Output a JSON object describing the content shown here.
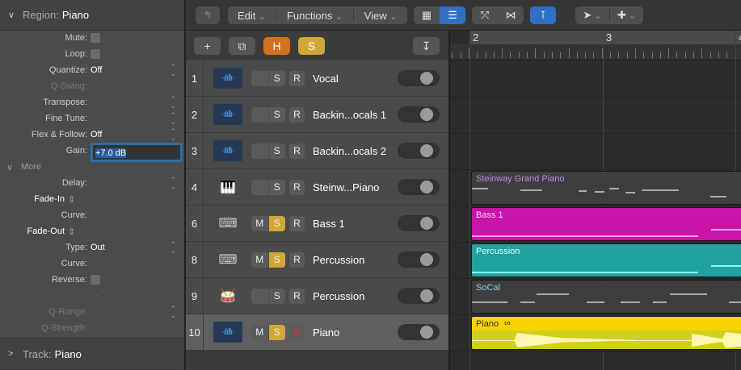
{
  "inspector": {
    "region_label": "Region:",
    "region_name": "Piano",
    "rows": [
      {
        "label": "Mute:",
        "type": "check"
      },
      {
        "label": "Loop:",
        "type": "check"
      },
      {
        "label": "Quantize:",
        "value": "Off",
        "spin": true
      },
      {
        "label": "Q-Swing:",
        "dim": true
      },
      {
        "label": "Transpose:",
        "spin": true
      },
      {
        "label": "Fine Tune:",
        "spin": true
      },
      {
        "label": "Flex & Follow:",
        "value": "Off",
        "spin": true
      },
      {
        "label": "Gain:",
        "type": "gain"
      },
      {
        "label": "More",
        "type": "section"
      },
      {
        "label": "Delay:",
        "spin": true
      },
      {
        "label": "Fade-In",
        "type": "bold"
      },
      {
        "label": "Curve:"
      },
      {
        "label": "Fade-Out",
        "type": "bold"
      },
      {
        "label": "Type:",
        "value": "Out",
        "spin": true
      },
      {
        "label": "Curve:"
      },
      {
        "label": "Reverse:",
        "type": "check"
      },
      {
        "label": "- -",
        "dim": true
      },
      {
        "label": "Q-Range:",
        "dim": true,
        "spin": true
      },
      {
        "label": "Q-Strength:",
        "dim": true
      }
    ],
    "gain_value": "+7.0 dB",
    "track_label": "Track:",
    "track_name": "Piano"
  },
  "toolbar": {
    "edit": "Edit",
    "functions": "Functions",
    "view": "View"
  },
  "track_header": {
    "hide_label": "H",
    "solo_label": "S"
  },
  "ruler": {
    "bars": [
      "2",
      "3",
      "4"
    ]
  },
  "tracks": [
    {
      "num": "1",
      "name": "Vocal",
      "icon": "audio",
      "m": false,
      "s": false,
      "r": false,
      "mute_label": "",
      "solo_label": "S",
      "rec_label": "R"
    },
    {
      "num": "2",
      "name": "Backin...ocals 1",
      "icon": "audio",
      "m": false,
      "s": false,
      "r": false,
      "mute_label": "",
      "solo_label": "S",
      "rec_label": "R"
    },
    {
      "num": "3",
      "name": "Backin...ocals 2",
      "icon": "audio",
      "m": false,
      "s": false,
      "r": false,
      "mute_label": "",
      "solo_label": "S",
      "rec_label": "R"
    },
    {
      "num": "4",
      "name": "Steinw...Piano",
      "icon": "grand-piano",
      "m": false,
      "s": false,
      "r": false,
      "mute_label": "",
      "solo_label": "S",
      "rec_label": "R"
    },
    {
      "num": "6",
      "name": "Bass 1",
      "icon": "keyboard",
      "m": true,
      "s": true,
      "r": false,
      "mute_label": "M",
      "solo_label": "S",
      "rec_label": "R"
    },
    {
      "num": "8",
      "name": "Percussion",
      "icon": "keyboard",
      "m": true,
      "s": true,
      "r": false,
      "mute_label": "M",
      "solo_label": "S",
      "rec_label": "R"
    },
    {
      "num": "9",
      "name": "Percussion",
      "icon": "drums",
      "m": false,
      "s": false,
      "r": false,
      "mute_label": "",
      "solo_label": "S",
      "rec_label": "R"
    },
    {
      "num": "10",
      "name": "Piano",
      "icon": "audio",
      "m": true,
      "s": true,
      "r": true,
      "selected": true,
      "mute_label": "M",
      "solo_label": "S",
      "rec_label": "R"
    }
  ],
  "regions": [
    {
      "row": 3,
      "name": "Steinway Grand Piano",
      "bg": "#3e3e3e",
      "text": "#b58ee0",
      "kind": "midi"
    },
    {
      "row": 4,
      "name": "Bass 1",
      "bg": "#c814a8",
      "text": "#ffd6f4",
      "kind": "line",
      "line": "#ff9ef0"
    },
    {
      "row": 5,
      "name": "Percussion",
      "bg": "#1fa3a0",
      "text": "#e6ffff",
      "kind": "line",
      "line": "#8ff5f5"
    },
    {
      "row": 6,
      "name": "SoCal",
      "bg": "#3e3e3e",
      "text": "#7fd6e0",
      "kind": "midi"
    },
    {
      "row": 7,
      "name": "Piano",
      "bg": "#f7d400",
      "text": "#333",
      "kind": "audio",
      "line": "#fff6b0"
    }
  ],
  "colors": {
    "accent": "#2f6fc6",
    "solo": "#d1a73a",
    "hide": "#d2711e"
  }
}
